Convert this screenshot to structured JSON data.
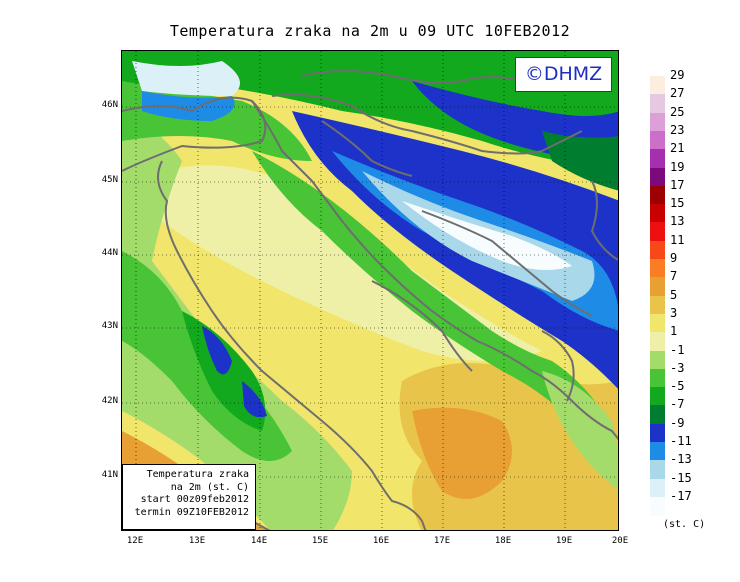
{
  "title": "Temperatura zraka na 2m u 09 UTC 10FEB2012",
  "logo": "©DHMZ",
  "info": {
    "line1": "Temperatura zraka",
    "line2": "na 2m (st. C)",
    "line3": "start 00z09feb2012",
    "line4": "termin 09Z10FEB2012"
  },
  "lat_labels": [
    "46N",
    "45N",
    "44N",
    "43N",
    "42N",
    "41N"
  ],
  "lon_labels": [
    "12E",
    "13E",
    "14E",
    "15E",
    "16E",
    "17E",
    "18E",
    "19E",
    "20E"
  ],
  "legend": {
    "unit": "(st. C)",
    "labels": [
      "29",
      "27",
      "25",
      "23",
      "21",
      "19",
      "17",
      "15",
      "13",
      "11",
      "9",
      "7",
      "5",
      "3",
      "1",
      "-1",
      "-3",
      "-5",
      "-7",
      "-9",
      "-11",
      "-13",
      "-15",
      "-17"
    ],
    "colors": [
      "#fbeee0",
      "#e6c8e0",
      "#dca0d8",
      "#cc6fc8",
      "#a62fb0",
      "#7d0a7d",
      "#9c0000",
      "#c80000",
      "#ee1010",
      "#f84818",
      "#f87d23",
      "#e8a034",
      "#e9c44b",
      "#f1e66b",
      "#eef0a8",
      "#a4dc6c",
      "#49c437",
      "#13a91e",
      "#007d2f",
      "#1c32c9",
      "#1e8be6",
      "#a9d8ea",
      "#dcf1f7",
      "#f7fdff"
    ]
  },
  "colors": {
    "logo_text": "#1d2fbf",
    "coastline": "#6e6e6e",
    "grid": "#000000"
  }
}
